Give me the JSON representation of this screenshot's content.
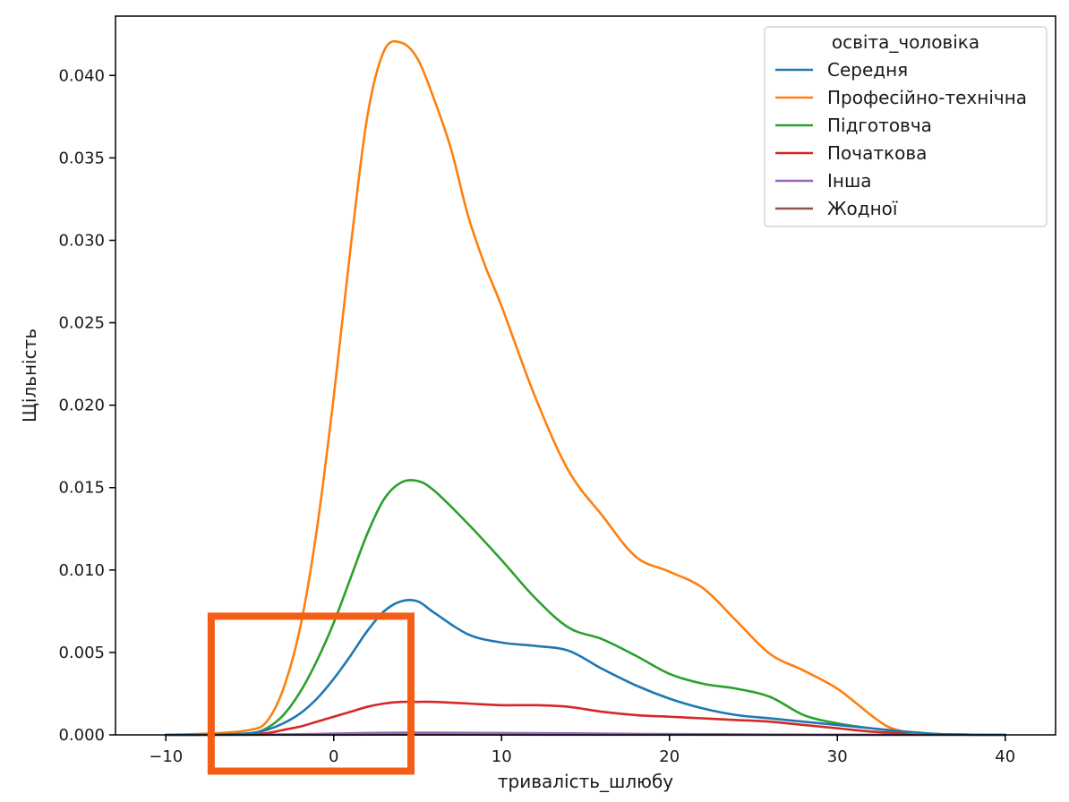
{
  "chart_data": {
    "type": "line",
    "xlabel": "тривалість_шлюбу",
    "ylabel": "Щільність",
    "xlim": [
      -13,
      43
    ],
    "ylim": [
      0,
      0.0436
    ],
    "x_ticks": [
      -10,
      0,
      10,
      20,
      30,
      40
    ],
    "x_tick_labels": [
      "−10",
      "0",
      "10",
      "20",
      "30",
      "40"
    ],
    "y_ticks": [
      0,
      0.005,
      0.01,
      0.015,
      0.02,
      0.025,
      0.03,
      0.035,
      0.04
    ],
    "y_tick_labels": [
      "0.000",
      "0.005",
      "0.010",
      "0.015",
      "0.020",
      "0.025",
      "0.030",
      "0.035",
      "0.040"
    ],
    "grid": false,
    "legend": {
      "title": "освіта_чоловіка",
      "placement": "top-right"
    },
    "annotation_box": {
      "x_range": [
        -7.3,
        4.6
      ],
      "y_range": [
        -0.0022,
        0.0072
      ],
      "color": "#f55d14"
    },
    "series": [
      {
        "name": "Середня",
        "color": "#1f77b4",
        "x": [
          -10,
          -7,
          -5,
          -4,
          -3,
          -2,
          -1,
          0,
          1,
          2,
          3,
          4,
          5,
          6,
          8,
          10,
          12,
          14,
          16,
          18,
          20,
          22,
          24,
          26,
          28,
          30,
          32,
          34,
          36,
          38,
          40
        ],
        "y": [
          0,
          2e-05,
          0.0001,
          0.0003,
          0.0007,
          0.0013,
          0.0022,
          0.0034,
          0.0048,
          0.0063,
          0.0075,
          0.0081,
          0.0081,
          0.0074,
          0.0061,
          0.0056,
          0.0054,
          0.0051,
          0.004,
          0.003,
          0.0022,
          0.0016,
          0.0012,
          0.001,
          0.0008,
          0.0006,
          0.0004,
          0.0002,
          5e-05,
          1e-05,
          0
        ]
      },
      {
        "name": "Професійно-технічна",
        "color": "#ff7f0e",
        "x": [
          -10,
          -7,
          -5,
          -4,
          -3,
          -2,
          -1,
          0,
          1,
          2,
          3,
          4,
          5,
          6,
          7,
          8,
          9,
          10,
          12,
          14,
          16,
          18,
          20,
          22,
          24,
          26,
          28,
          30,
          32,
          33,
          34,
          35,
          36,
          38,
          40
        ],
        "y": [
          0,
          0.0001,
          0.0003,
          0.0008,
          0.0028,
          0.0065,
          0.0125,
          0.0205,
          0.0295,
          0.0375,
          0.0415,
          0.042,
          0.041,
          0.0385,
          0.0355,
          0.0315,
          0.0285,
          0.026,
          0.0205,
          0.016,
          0.0133,
          0.0108,
          0.0099,
          0.0089,
          0.0069,
          0.0049,
          0.0039,
          0.0028,
          0.0012,
          0.0005,
          0.0002,
          8e-05,
          3e-05,
          1e-05,
          0
        ]
      },
      {
        "name": "Підготовча",
        "color": "#2ca02c",
        "x": [
          -10,
          -7,
          -5,
          -4,
          -3,
          -2,
          -1,
          0,
          1,
          2,
          3,
          4,
          5,
          6,
          8,
          10,
          12,
          14,
          16,
          18,
          20,
          22,
          24,
          26,
          28,
          30,
          32,
          34,
          36,
          38,
          40
        ],
        "y": [
          0,
          2e-05,
          0.0001,
          0.0004,
          0.0012,
          0.0026,
          0.0045,
          0.0068,
          0.0095,
          0.0122,
          0.0143,
          0.0153,
          0.0154,
          0.0148,
          0.0128,
          0.0106,
          0.0083,
          0.0065,
          0.0058,
          0.0048,
          0.0037,
          0.0031,
          0.0028,
          0.0023,
          0.0012,
          0.0007,
          0.0004,
          0.0002,
          5e-05,
          1e-05,
          0
        ]
      },
      {
        "name": "Початкова",
        "color": "#d62728",
        "x": [
          -10,
          -7,
          -5,
          -4,
          -3,
          -2,
          -1,
          0,
          1,
          2,
          3,
          4,
          5,
          6,
          8,
          10,
          12,
          14,
          16,
          18,
          20,
          22,
          24,
          26,
          28,
          30,
          32,
          34,
          36,
          38,
          40
        ],
        "y": [
          0,
          1e-05,
          5e-05,
          0.0001,
          0.0003,
          0.0005,
          0.0008,
          0.0011,
          0.0014,
          0.0017,
          0.0019,
          0.002,
          0.002,
          0.002,
          0.0019,
          0.0018,
          0.0018,
          0.0017,
          0.0014,
          0.0012,
          0.0011,
          0.001,
          0.0009,
          0.0008,
          0.0006,
          0.0004,
          0.0002,
          0.0001,
          4e-05,
          1e-05,
          0
        ]
      },
      {
        "name": "Інша",
        "color": "#9467bd",
        "x": [
          -10,
          -5,
          -2,
          0,
          2,
          4,
          6,
          8,
          10,
          14,
          18,
          22,
          26,
          30,
          34,
          40
        ],
        "y": [
          0,
          1e-05,
          4e-05,
          8e-05,
          0.00011,
          0.00013,
          0.00013,
          0.00012,
          0.00011,
          9e-05,
          6e-05,
          4e-05,
          2e-05,
          1e-05,
          0,
          0
        ]
      },
      {
        "name": "Жодної",
        "color": "#8c564b",
        "x": [
          -10,
          -5,
          0,
          5,
          10,
          15,
          20,
          25,
          30,
          35,
          40
        ],
        "y": [
          0,
          5e-06,
          1e-05,
          2e-05,
          1.5e-05,
          1e-05,
          8e-06,
          5e-06,
          3e-06,
          1e-06,
          0
        ]
      }
    ]
  }
}
